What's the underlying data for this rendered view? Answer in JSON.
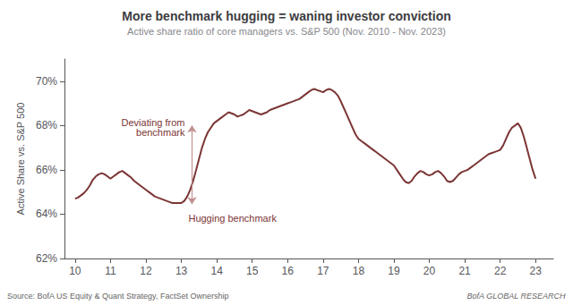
{
  "chart_data": {
    "type": "line",
    "title": "More benchmark hugging = waning investor conviction",
    "subtitle": "Active share ratio of core managers vs. S&P 500 (Nov. 2010 - Nov. 2023)",
    "ylabel": "Active Share vs. S&P 500",
    "source": "Source: BofA US Equity & Quant Strategy, FactSet Ownership",
    "branding": "BofA GLOBAL RESEARCH",
    "annotations": [
      "Deviating from\nbenchmark",
      "Hugging benchmark"
    ],
    "arrow": {
      "x": 13.3,
      "y_top": 68.0,
      "y_bottom": 64.45,
      "color": "#C09090"
    },
    "color": "#7B3535",
    "xlim": [
      9.7,
      23.5
    ],
    "xticks": [
      10,
      11,
      12,
      13,
      14,
      15,
      16,
      17,
      18,
      19,
      20,
      21,
      22,
      23
    ],
    "ylim": [
      62,
      71
    ],
    "yticks": [
      {
        "value": 62,
        "label": "62%"
      },
      {
        "value": 64,
        "label": "64%"
      },
      {
        "value": 66,
        "label": "66%"
      },
      {
        "value": 68,
        "label": "68%"
      },
      {
        "value": 70,
        "label": "70%"
      }
    ],
    "grid": false,
    "x": [
      10.0,
      10.083,
      10.167,
      10.25,
      10.333,
      10.417,
      10.5,
      10.583,
      10.667,
      10.75,
      10.833,
      10.917,
      11.0,
      11.083,
      11.167,
      11.25,
      11.333,
      11.417,
      11.5,
      11.583,
      11.667,
      11.75,
      11.833,
      11.917,
      12.0,
      12.083,
      12.167,
      12.25,
      12.333,
      12.417,
      12.5,
      12.583,
      12.667,
      12.75,
      12.833,
      12.917,
      13.0,
      13.083,
      13.167,
      13.25,
      13.333,
      13.417,
      13.5,
      13.583,
      13.667,
      13.75,
      13.833,
      13.917,
      14.0,
      14.083,
      14.167,
      14.25,
      14.333,
      14.417,
      14.5,
      14.583,
      14.667,
      14.75,
      14.833,
      14.917,
      15.0,
      15.083,
      15.167,
      15.25,
      15.333,
      15.417,
      15.5,
      15.583,
      15.667,
      15.75,
      15.833,
      15.917,
      16.0,
      16.083,
      16.167,
      16.25,
      16.333,
      16.417,
      16.5,
      16.583,
      16.667,
      16.75,
      16.833,
      16.917,
      17.0,
      17.083,
      17.167,
      17.25,
      17.333,
      17.417,
      17.5,
      17.583,
      17.667,
      17.75,
      17.833,
      17.917,
      18.0,
      18.083,
      18.167,
      18.25,
      18.333,
      18.417,
      18.5,
      18.583,
      18.667,
      18.75,
      18.833,
      18.917,
      19.0,
      19.083,
      19.167,
      19.25,
      19.333,
      19.417,
      19.5,
      19.583,
      19.667,
      19.75,
      19.833,
      19.917,
      20.0,
      20.083,
      20.167,
      20.25,
      20.333,
      20.417,
      20.5,
      20.583,
      20.667,
      20.75,
      20.833,
      20.917,
      21.0,
      21.083,
      21.167,
      21.25,
      21.333,
      21.417,
      21.5,
      21.583,
      21.667,
      21.75,
      21.833,
      21.917,
      22.0,
      22.083,
      22.167,
      22.25,
      22.333,
      22.417,
      22.5,
      22.583,
      22.667,
      22.75,
      22.833,
      22.917,
      23.0
    ],
    "values": [
      64.7,
      64.75,
      64.85,
      64.95,
      65.1,
      65.3,
      65.55,
      65.7,
      65.8,
      65.85,
      65.8,
      65.7,
      65.6,
      65.7,
      65.8,
      65.9,
      65.95,
      65.85,
      65.75,
      65.65,
      65.5,
      65.4,
      65.3,
      65.2,
      65.1,
      65.0,
      64.9,
      64.8,
      64.75,
      64.7,
      64.65,
      64.6,
      64.55,
      64.5,
      64.5,
      64.5,
      64.5,
      64.6,
      64.8,
      65.1,
      65.5,
      66.0,
      66.5,
      67.0,
      67.4,
      67.7,
      67.9,
      68.1,
      68.2,
      68.3,
      68.4,
      68.5,
      68.6,
      68.55,
      68.5,
      68.4,
      68.45,
      68.5,
      68.6,
      68.7,
      68.65,
      68.6,
      68.55,
      68.5,
      68.55,
      68.6,
      68.7,
      68.75,
      68.8,
      68.85,
      68.9,
      68.95,
      69.0,
      69.05,
      69.1,
      69.15,
      69.2,
      69.3,
      69.4,
      69.5,
      69.6,
      69.65,
      69.6,
      69.55,
      69.5,
      69.6,
      69.65,
      69.6,
      69.5,
      69.35,
      69.1,
      68.8,
      68.5,
      68.2,
      67.9,
      67.6,
      67.4,
      67.3,
      67.2,
      67.1,
      67.0,
      66.9,
      66.8,
      66.7,
      66.6,
      66.5,
      66.4,
      66.3,
      66.2,
      66.0,
      65.8,
      65.6,
      65.45,
      65.4,
      65.5,
      65.7,
      65.85,
      65.95,
      65.9,
      65.8,
      65.75,
      65.8,
      65.9,
      65.95,
      65.85,
      65.7,
      65.5,
      65.45,
      65.5,
      65.65,
      65.8,
      65.9,
      65.95,
      66.0,
      66.1,
      66.2,
      66.3,
      66.4,
      66.5,
      66.6,
      66.7,
      66.75,
      66.8,
      66.85,
      66.9,
      67.1,
      67.4,
      67.7,
      67.9,
      68.0,
      68.1,
      67.9,
      67.5,
      67.0,
      66.5,
      66.0,
      65.6
    ]
  }
}
